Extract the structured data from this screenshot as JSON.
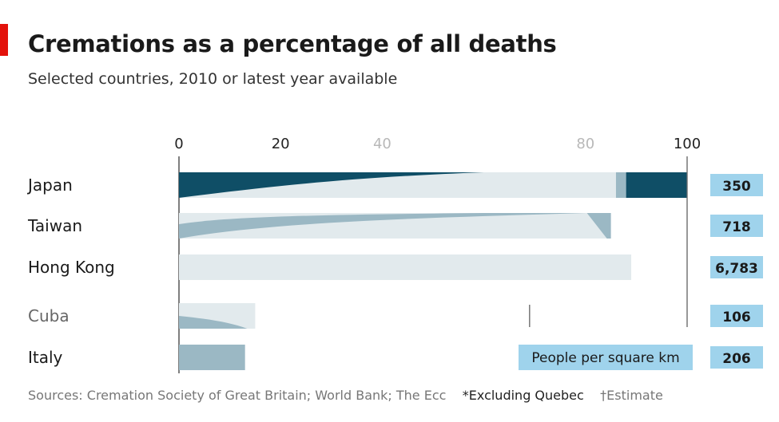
{
  "title": "Cremations as a percentage of all deaths",
  "subtitle": "Selected countries, 2010 or latest year available",
  "chart_data": {
    "type": "bar",
    "orientation": "horizontal",
    "categories": [
      "Japan",
      "Taiwan",
      "Hong Kong",
      "Cuba",
      "Italy"
    ],
    "values": [
      99.9,
      85,
      89,
      15,
      13
    ],
    "xlim": [
      0,
      100
    ],
    "tick_labels": [
      "0",
      "20",
      "40",
      "80",
      "100"
    ],
    "tick_values": [
      0,
      20,
      40,
      80,
      100
    ],
    "secondary_column": {
      "label": "People per square km",
      "values": [
        "350",
        "718",
        "6,783",
        "106",
        "206"
      ]
    },
    "colors": {
      "bar_dark": "#0f4e66",
      "bar_mid": "#9bb8c4",
      "bar_light": "#e2eaed",
      "density_box": "#9fd3ec",
      "axis": "#555555"
    }
  },
  "footer": {
    "sources": "Sources: Cremation Society of Great Britain; World Bank; The Ecc",
    "note1": "*Excluding Quebec",
    "note2": "†Estimate"
  }
}
